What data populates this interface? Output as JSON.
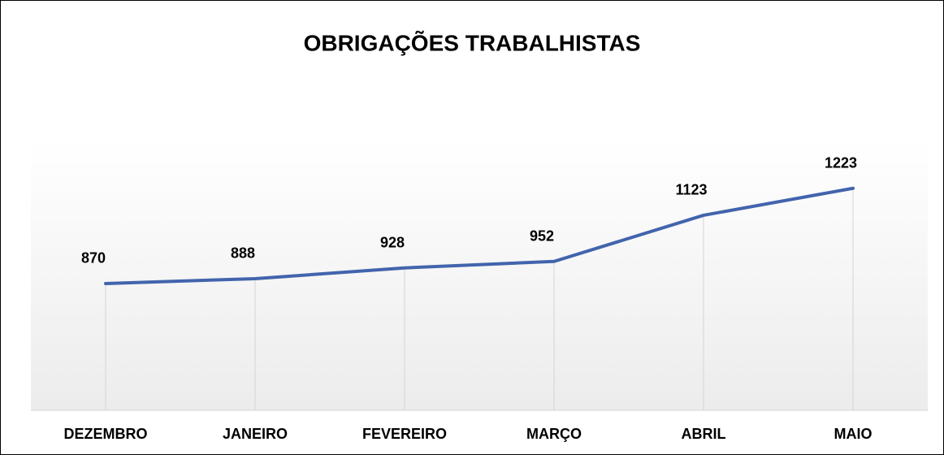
{
  "chart_data": {
    "type": "line",
    "title": "OBRIGAÇÕES TRABALHISTAS",
    "categories": [
      "DEZEMBRO",
      "JANEIRO",
      "FEVEREIRO",
      "MARÇO",
      "ABRIL",
      "MAIO"
    ],
    "values": [
      870,
      888,
      928,
      952,
      1123,
      1223
    ],
    "color": "#4264ad",
    "ylim": [
      400,
      1400
    ],
    "drop_lines": true
  }
}
